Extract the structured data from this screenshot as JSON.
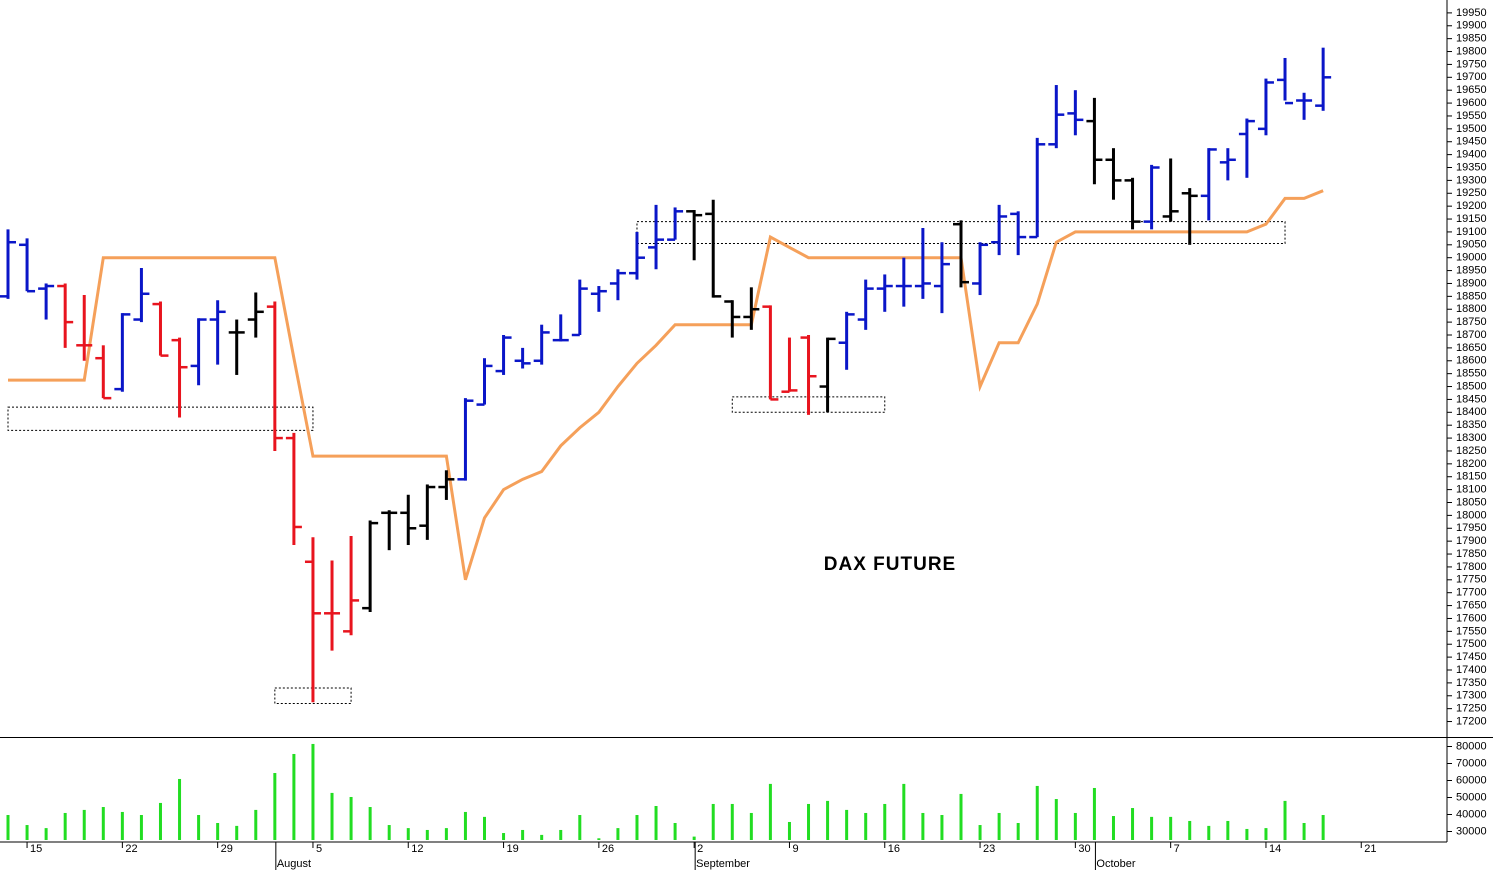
{
  "chart_data": [
    {
      "type": "ohlc",
      "annotation": "DAX FUTURE",
      "open": [
        18850,
        19050,
        18880,
        18890,
        18660,
        18610,
        18490,
        18760,
        18820,
        18680,
        18580,
        18760,
        18710,
        18760,
        18810,
        18300,
        17820,
        17620,
        17550,
        17640,
        18010,
        18010,
        17960,
        18110,
        18140,
        18430,
        18560,
        18600,
        18600,
        18680,
        18700,
        18860,
        18900,
        18940,
        19040,
        19070,
        19180,
        19170,
        18830,
        18770,
        18810,
        18480,
        18690,
        18500,
        18670,
        18760,
        18880,
        18890,
        18890,
        18890,
        19130,
        18900,
        19060,
        19170,
        19080,
        19440,
        19560,
        19530,
        19380,
        19300,
        19140,
        19160,
        19250,
        19240,
        19370,
        19480,
        19500,
        19690,
        19610,
        19590,
        null,
        null,
        null,
        null,
        null,
        null
      ],
      "high": [
        19110,
        19075,
        18900,
        18900,
        18855,
        18660,
        18785,
        18960,
        18830,
        18690,
        18765,
        18835,
        18760,
        18865,
        18830,
        18320,
        17915,
        17825,
        17920,
        17980,
        18020,
        18080,
        18120,
        18175,
        18455,
        18610,
        18700,
        18650,
        18740,
        18780,
        18915,
        18890,
        18955,
        19100,
        19205,
        19195,
        19185,
        19225,
        18835,
        18885,
        18815,
        18690,
        18700,
        18690,
        18790,
        18915,
        18935,
        19000,
        19115,
        19060,
        19145,
        19060,
        19205,
        19180,
        19465,
        19670,
        19650,
        19620,
        19425,
        19310,
        19360,
        19385,
        19270,
        19425,
        19425,
        19540,
        19695,
        19775,
        19640,
        19815,
        null,
        null,
        null,
        null,
        null,
        null
      ],
      "low": [
        18840,
        18870,
        18760,
        18650,
        18600,
        18455,
        18480,
        18750,
        18620,
        18380,
        18505,
        18585,
        18545,
        18690,
        18250,
        17885,
        17275,
        17475,
        17535,
        17625,
        17865,
        17885,
        17905,
        18060,
        18135,
        18430,
        18545,
        18570,
        18585,
        18675,
        18700,
        18790,
        18835,
        18915,
        18955,
        19070,
        18990,
        18845,
        18690,
        18720,
        18450,
        18480,
        18390,
        18400,
        18565,
        18720,
        18790,
        18810,
        18840,
        18785,
        18885,
        18855,
        19010,
        19010,
        19080,
        19425,
        19475,
        19285,
        19225,
        19110,
        19110,
        19140,
        19050,
        19145,
        19300,
        19310,
        19475,
        19610,
        19535,
        19570,
        null,
        null,
        null,
        null,
        null,
        null
      ],
      "close": [
        19060,
        18870,
        18890,
        18750,
        18660,
        18455,
        18780,
        18860,
        18620,
        18575,
        18760,
        18790,
        18710,
        18790,
        18300,
        17955,
        17620,
        17620,
        17670,
        17970,
        18010,
        17950,
        18110,
        18140,
        18445,
        18580,
        18690,
        18590,
        18710,
        18680,
        18880,
        18870,
        18940,
        19000,
        19070,
        19180,
        19165,
        18850,
        18770,
        18800,
        18450,
        18485,
        18540,
        18685,
        18780,
        18880,
        18890,
        18890,
        18900,
        18975,
        18905,
        19050,
        19160,
        19080,
        19440,
        19555,
        19535,
        19380,
        19300,
        19140,
        19350,
        19180,
        19240,
        19420,
        19380,
        19530,
        19680,
        19600,
        19610,
        19700,
        null,
        null,
        null,
        null,
        null,
        null
      ],
      "bar_colors": [
        "#0a16c8",
        "#0a16c8",
        "#0a16c8",
        "#e8141e",
        "#e8141e",
        "#e8141e",
        "#0a16c8",
        "#0a16c8",
        "#e8141e",
        "#e8141e",
        "#0a16c8",
        "#0a16c8",
        "#000000",
        "#000000",
        "#e8141e",
        "#e8141e",
        "#e8141e",
        "#e8141e",
        "#e8141e",
        "#000000",
        "#000000",
        "#000000",
        "#000000",
        "#000000",
        "#0a16c8",
        "#0a16c8",
        "#0a16c8",
        "#0a16c8",
        "#0a16c8",
        "#0a16c8",
        "#0a16c8",
        "#0a16c8",
        "#0a16c8",
        "#0a16c8",
        "#0a16c8",
        "#0a16c8",
        "#000000",
        "#000000",
        "#000000",
        "#000000",
        "#e8141e",
        "#e8141e",
        "#e8141e",
        "#000000",
        "#0a16c8",
        "#0a16c8",
        "#0a16c8",
        "#0a16c8",
        "#0a16c8",
        "#0a16c8",
        "#000000",
        "#0a16c8",
        "#0a16c8",
        "#0a16c8",
        "#0a16c8",
        "#0a16c8",
        "#0a16c8",
        "#000000",
        "#000000",
        "#000000",
        "#0a16c8",
        "#000000",
        "#000000",
        "#0a16c8",
        "#0a16c8",
        "#0a16c8",
        "#0a16c8",
        "#0a16c8",
        "#0a16c8",
        "#0a16c8",
        null,
        null,
        null,
        null,
        null,
        null
      ],
      "overlay": {
        "color": "#f5a05a",
        "values": [
          18525,
          18525,
          18525,
          18525,
          18525,
          19000,
          19000,
          19000,
          19000,
          19000,
          19000,
          19000,
          19000,
          19000,
          19000,
          18610,
          18230,
          18230,
          18230,
          18230,
          18230,
          18230,
          18230,
          18230,
          17750,
          17990,
          18100,
          18140,
          18170,
          18270,
          18340,
          18400,
          18500,
          18590,
          18660,
          18740,
          18740,
          18740,
          18740,
          18740,
          19080,
          19040,
          19000,
          19000,
          19000,
          19000,
          19000,
          19000,
          19000,
          19000,
          19000,
          18500,
          18670,
          18670,
          18820,
          19060,
          19100,
          19100,
          19100,
          19100,
          19100,
          19100,
          19100,
          19100,
          19100,
          19100,
          19130,
          19230,
          19230,
          19260,
          null,
          null,
          null,
          null,
          null,
          null
        ]
      },
      "zones": [
        {
          "x": [
            0,
            16
          ],
          "y": [
            18330,
            18420
          ]
        },
        {
          "x": [
            14,
            18
          ],
          "y": [
            17270,
            17330
          ]
        },
        {
          "x": [
            33,
            67
          ],
          "y": [
            19055,
            19140
          ]
        },
        {
          "x": [
            38,
            46
          ],
          "y": [
            18400,
            18460
          ]
        }
      ],
      "ylim": [
        17140,
        20000
      ],
      "yticks": [
        17200,
        17250,
        17300,
        17350,
        17400,
        17450,
        17500,
        17550,
        17600,
        17650,
        17700,
        17750,
        17800,
        17850,
        17900,
        17950,
        18000,
        18050,
        18100,
        18150,
        18200,
        18250,
        18300,
        18350,
        18400,
        18450,
        18500,
        18550,
        18600,
        18650,
        18700,
        18750,
        18800,
        18850,
        18900,
        18950,
        19000,
        19050,
        19100,
        19150,
        19200,
        19250,
        19300,
        19350,
        19400,
        19450,
        19500,
        19550,
        19600,
        19650,
        19700,
        19750,
        19800,
        19850,
        19900,
        19950
      ]
    },
    {
      "type": "bar",
      "color": "#22dd22",
      "values": [
        39700,
        33800,
        32000,
        40900,
        42700,
        44400,
        41500,
        39700,
        46800,
        60900,
        39700,
        35000,
        33300,
        42700,
        64400,
        75600,
        81500,
        52700,
        50300,
        44400,
        33800,
        32000,
        30900,
        32000,
        41500,
        38600,
        29100,
        30900,
        28000,
        30900,
        39700,
        26000,
        32000,
        39700,
        45000,
        35000,
        27000,
        46200,
        46200,
        40900,
        58000,
        35600,
        46200,
        48000,
        42700,
        40900,
        46200,
        58000,
        40900,
        39700,
        52100,
        33800,
        40900,
        35000,
        56800,
        49100,
        40900,
        55600,
        39100,
        43800,
        38600,
        38600,
        36200,
        33300,
        36200,
        31500,
        32000,
        48000,
        35000,
        39700,
        null,
        null,
        null,
        null,
        null,
        null
      ],
      "categories": [
        null,
        "15",
        null,
        null,
        null,
        null,
        "22",
        null,
        null,
        null,
        null,
        "29",
        null,
        null,
        null,
        null,
        "5",
        null,
        null,
        null,
        null,
        "12",
        null,
        null,
        null,
        null,
        "19",
        null,
        null,
        null,
        null,
        "26",
        null,
        null,
        null,
        null,
        "2",
        null,
        null,
        null,
        null,
        "9",
        null,
        null,
        null,
        null,
        "16",
        null,
        null,
        null,
        null,
        "23",
        null,
        null,
        null,
        null,
        "30",
        null,
        null,
        null,
        null,
        "7",
        null,
        null,
        null,
        null,
        "14",
        null,
        null,
        null,
        null,
        "21",
        null,
        null,
        null,
        null
      ],
      "months": [
        null,
        null,
        null,
        null,
        null,
        null,
        null,
        null,
        null,
        null,
        null,
        null,
        null,
        null,
        "August",
        null,
        null,
        null,
        null,
        null,
        null,
        null,
        null,
        null,
        null,
        null,
        null,
        null,
        null,
        null,
        null,
        null,
        null,
        null,
        null,
        null,
        "September",
        null,
        null,
        null,
        null,
        null,
        null,
        null,
        null,
        null,
        null,
        null,
        null,
        null,
        null,
        null,
        null,
        null,
        null,
        null,
        null,
        "October",
        null,
        null,
        null,
        null,
        null,
        null,
        null,
        null,
        null,
        null,
        null,
        null,
        null,
        null,
        null,
        null,
        null,
        null
      ],
      "ylim": [
        25000,
        85000
      ],
      "yticks": [
        30000,
        40000,
        50000,
        60000,
        70000,
        80000
      ]
    }
  ]
}
